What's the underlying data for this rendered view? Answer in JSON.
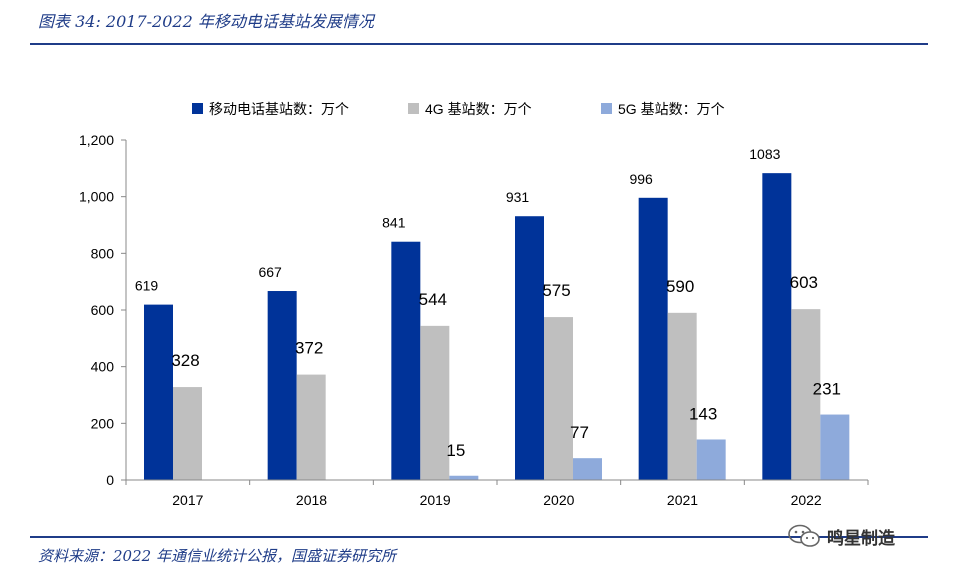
{
  "header": {
    "title": "图表 34: 2017-2022 年移动电话基站发展情况"
  },
  "footer": {
    "source": "资料来源：2022 年通信业统计公报，国盛证券研究所",
    "watermark": "鸣星制造"
  },
  "colors": {
    "accent": "#1f3c88",
    "series_total": "#003399",
    "series_4g": "#bfbfbf",
    "series_5g": "#8eaadb"
  },
  "chart_data": {
    "type": "bar",
    "title": "",
    "xlabel": "",
    "ylabel": "",
    "ylim": [
      0,
      1200
    ],
    "yticks": [
      0,
      200,
      400,
      600,
      800,
      1000,
      1200
    ],
    "ytick_labels": [
      "0",
      "200",
      "400",
      "600",
      "800",
      "1,000",
      "1,200"
    ],
    "categories": [
      "2017",
      "2018",
      "2019",
      "2020",
      "2021",
      "2022"
    ],
    "legend_position": "top",
    "series": [
      {
        "name": "移动电话基站数：万个",
        "color": "#003399",
        "values": [
          619,
          667,
          841,
          931,
          996,
          1083
        ]
      },
      {
        "name": "4G 基站数：万个",
        "color": "#bfbfbf",
        "values": [
          328,
          372,
          544,
          575,
          590,
          603
        ]
      },
      {
        "name": "5G 基站数：万个",
        "color": "#8eaadb",
        "values": [
          null,
          null,
          15,
          77,
          143,
          231
        ]
      }
    ]
  }
}
